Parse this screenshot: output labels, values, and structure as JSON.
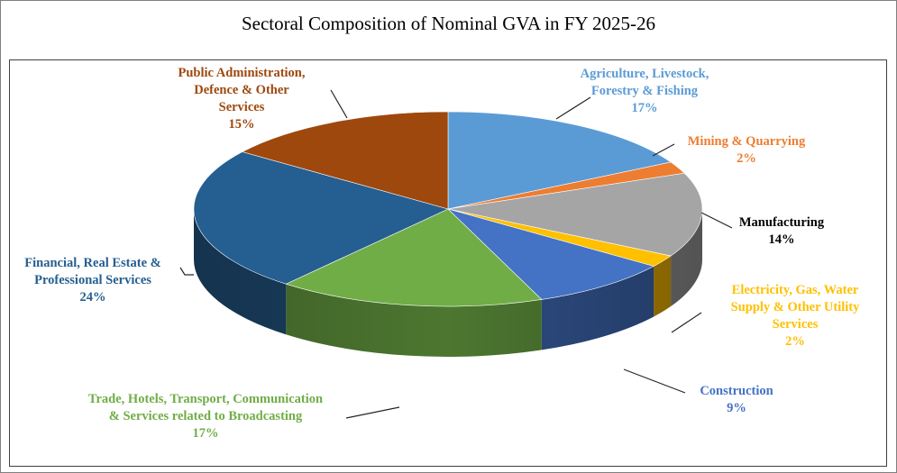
{
  "chart_data": {
    "type": "pie",
    "title": "Sectoral Composition of Nominal GVA in FY 2025-26",
    "slices": [
      {
        "lines": [
          "Agriculture, Livestock,",
          "Forestry & Fishing"
        ],
        "pct_label": "17%",
        "value": 17,
        "color": "#5b9bd5",
        "label_color": "#5b9bd5"
      },
      {
        "lines": [
          "Mining & Quarrying"
        ],
        "pct_label": "2%",
        "value": 2,
        "color": "#ed7d31",
        "label_color": "#ed7d31"
      },
      {
        "lines": [
          "Manufacturing"
        ],
        "pct_label": "14%",
        "value": 14,
        "color": "#a5a5a5",
        "label_color": "#000000"
      },
      {
        "lines": [
          "Electricity, Gas, Water",
          "Supply & Other Utility",
          "Services"
        ],
        "pct_label": "2%",
        "value": 2,
        "color": "#ffc000",
        "label_color": "#ffc000"
      },
      {
        "lines": [
          "Construction"
        ],
        "pct_label": "9%",
        "value": 9,
        "color": "#4472c4",
        "label_color": "#4472c4"
      },
      {
        "lines": [
          "Trade, Hotels, Transport, Communication",
          "& Services related to Broadcasting"
        ],
        "pct_label": "17%",
        "value": 17,
        "color": "#70ad47",
        "label_color": "#70ad47"
      },
      {
        "lines": [
          "Financial, Real Estate &",
          "Professional Services"
        ],
        "pct_label": "24%",
        "value": 24,
        "color": "#255e91",
        "label_color": "#255e91"
      },
      {
        "lines": [
          "Public Administration,",
          "Defence & Other",
          "Services"
        ],
        "pct_label": "15%",
        "value": 15,
        "color": "#9e480e",
        "label_color": "#9e480e"
      }
    ]
  }
}
